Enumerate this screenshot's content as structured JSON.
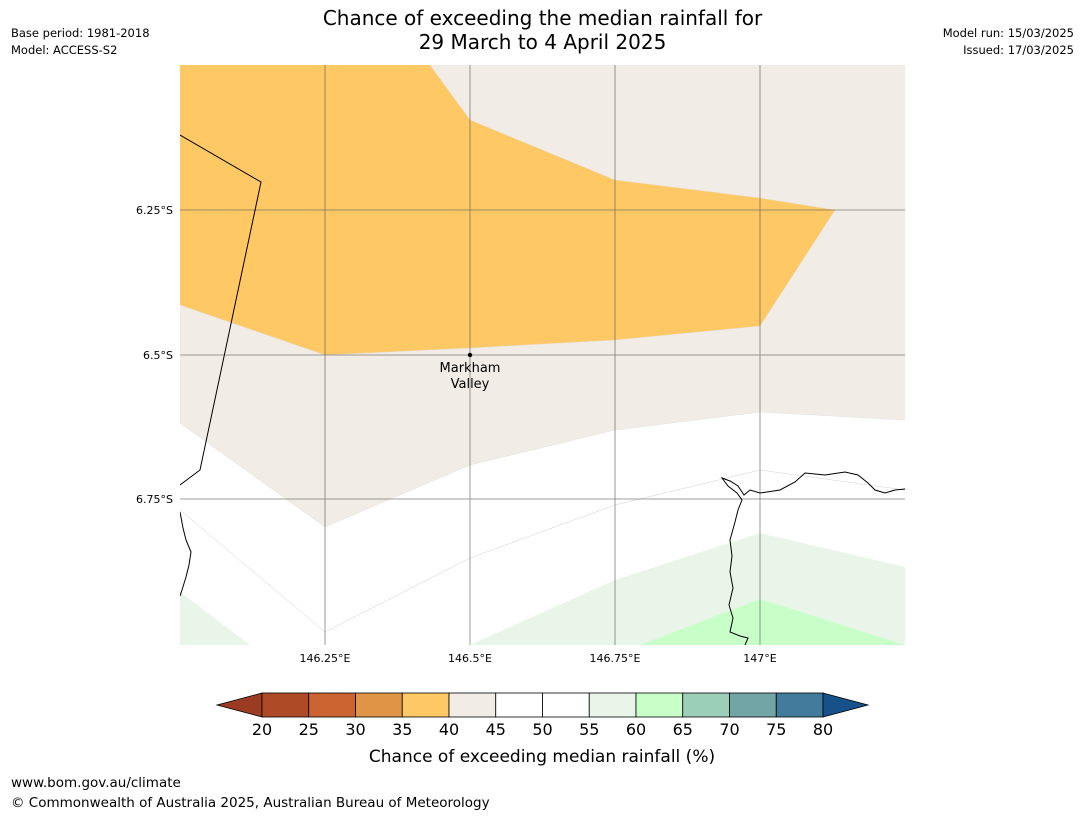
{
  "title": {
    "line1": "Chance of exceeding the median rainfall for",
    "line2": "29 March to 4 April 2025"
  },
  "meta_left": {
    "base_period": "Base period: 1981-2018",
    "model": "Model: ACCESS-S2"
  },
  "meta_right": {
    "model_run": "Model run: 15/03/2025",
    "issued": "Issued: 17/03/2025"
  },
  "map": {
    "lon_labels": [
      "146.25°E",
      "146.5°E",
      "146.75°E",
      "147°E"
    ],
    "lat_labels": [
      "6.25°S",
      "6.5°S",
      "6.75°S"
    ],
    "place": {
      "name_line1": "Markham",
      "name_line2": "Valley"
    }
  },
  "colorbar": {
    "label": "Chance of exceeding median rainfall (%)",
    "ticks": [
      "20",
      "25",
      "30",
      "35",
      "40",
      "45",
      "50",
      "55",
      "60",
      "65",
      "70",
      "75",
      "80"
    ],
    "colors": [
      "#af4a26",
      "#cc6432",
      "#e09446",
      "#fec964",
      "#f1ece5",
      "#ffffff",
      "#ffffff",
      "#e9f5e8",
      "#c8fec8",
      "#9ccfb8",
      "#72a6a6",
      "#427b9b"
    ],
    "under_color": "#9a3b23",
    "over_color": "#175189"
  },
  "footer": {
    "url": "www.bom.gov.au/climate",
    "copyright": "© Commonwealth of Australia 2025, Australian Bureau of Meteorology"
  }
}
